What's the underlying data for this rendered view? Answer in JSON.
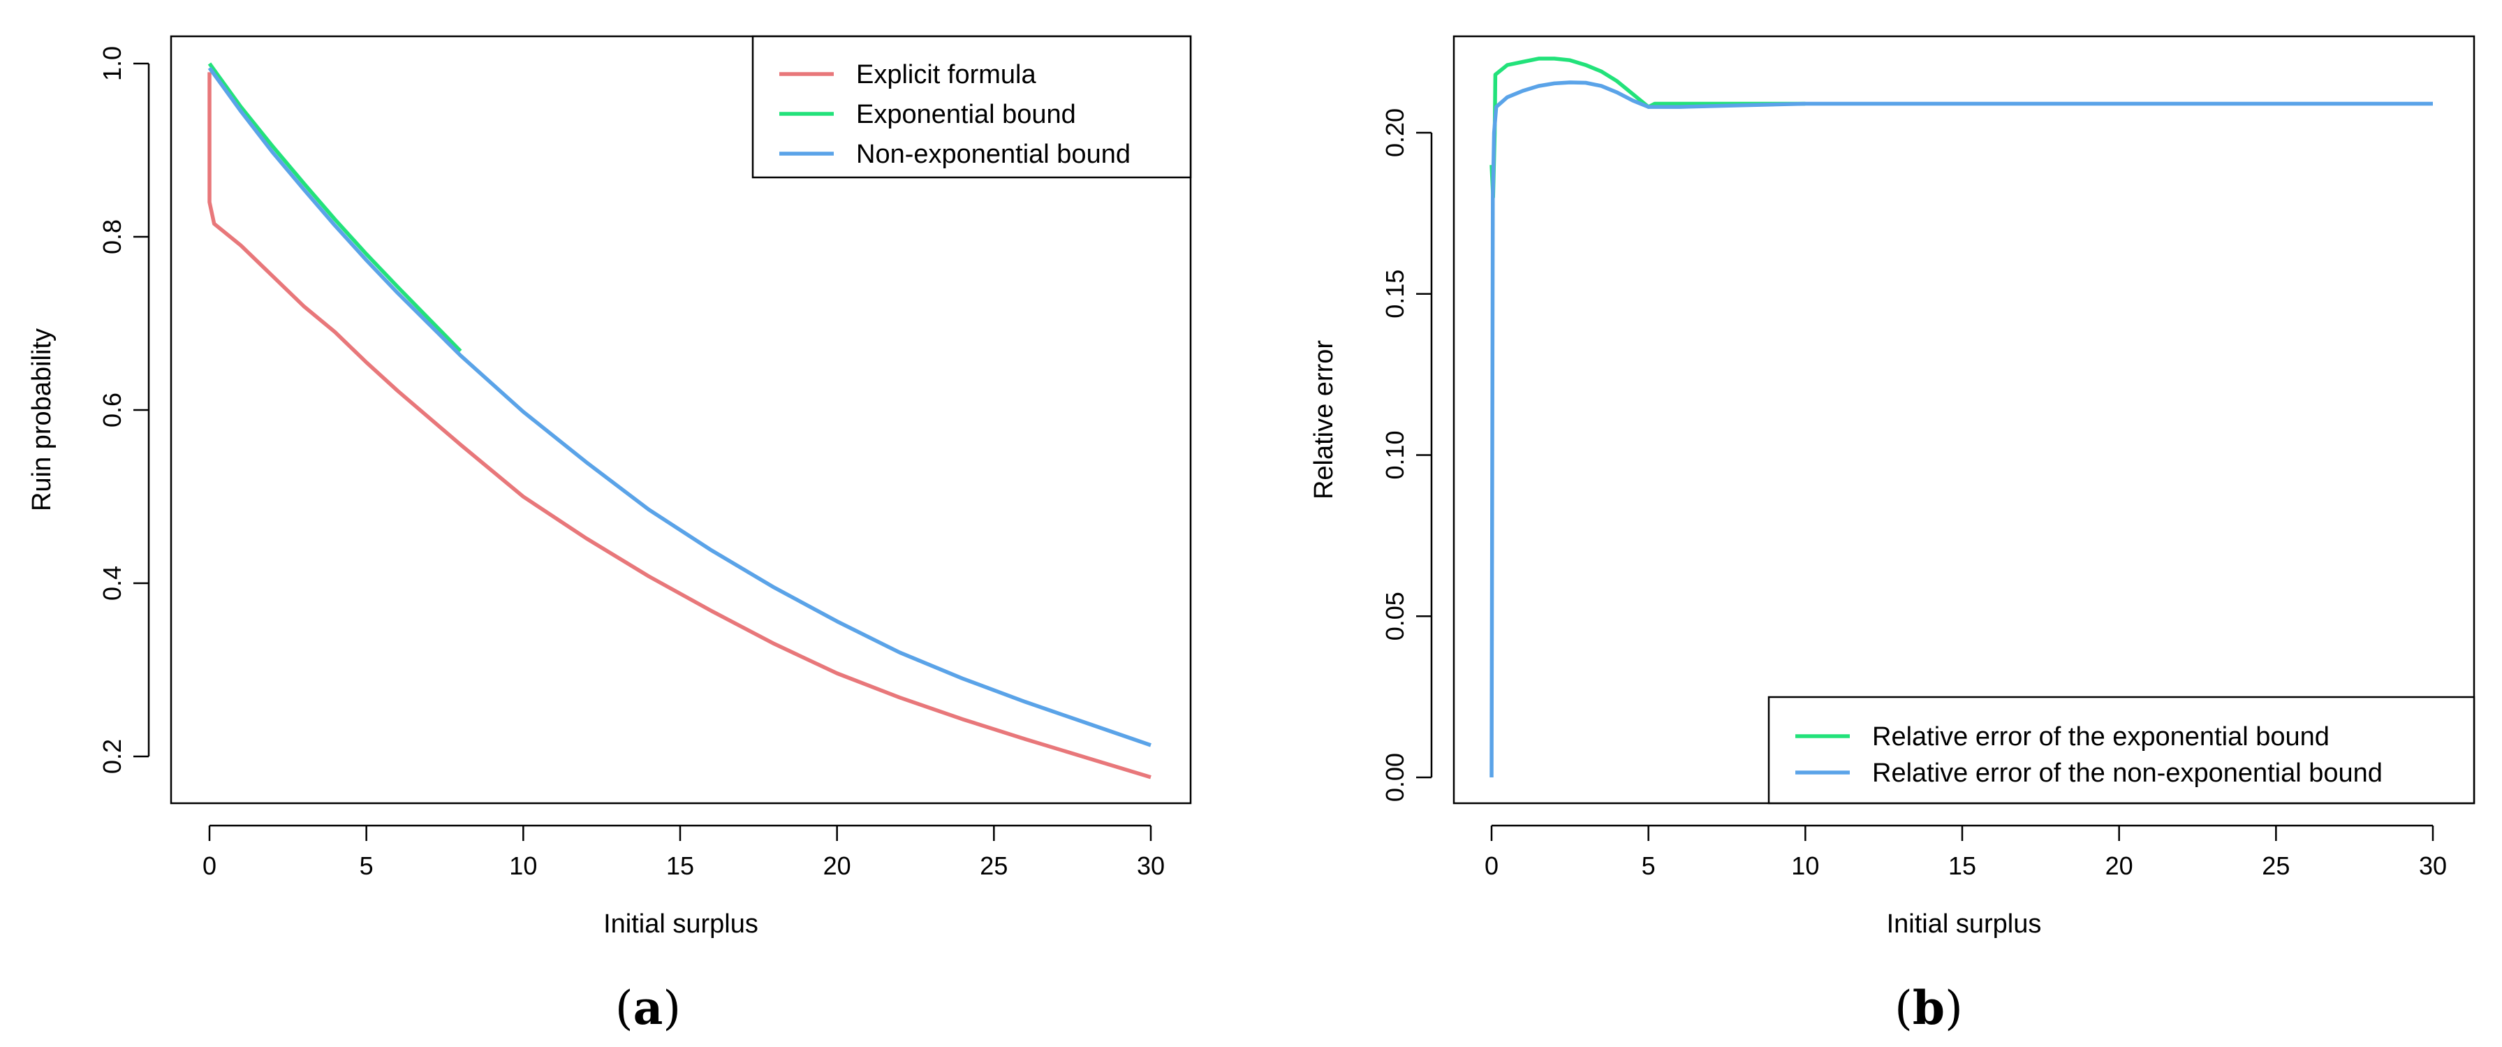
{
  "panels": [
    {
      "caption": "(a)",
      "caption_letter": "a",
      "chart_data": {
        "type": "line",
        "xlabel": "Initial surplus",
        "ylabel": "Ruin probability",
        "xlim": [
          0,
          30
        ],
        "ylim": [
          0.2,
          1.0
        ],
        "xticks": [
          0,
          5,
          10,
          15,
          20,
          25,
          30
        ],
        "yticks": [
          0.2,
          0.4,
          0.6,
          0.8,
          1.0
        ],
        "ytick_labels": [
          "0.2",
          "0.4",
          "0.6",
          "0.8",
          "1.0"
        ],
        "legend_position": "top-right",
        "grid": false,
        "series": [
          {
            "name": "Explicit formula",
            "color": "#e8777a",
            "x": [
              0,
              0,
              0.15,
              1,
              2,
              3,
              4,
              5,
              6,
              8,
              10,
              12,
              14,
              16,
              18,
              20,
              22,
              24,
              26,
              28,
              30
            ],
            "y": [
              0.99,
              0.84,
              0.815,
              0.79,
              0.755,
              0.72,
              0.69,
              0.655,
              0.622,
              0.56,
              0.5,
              0.452,
              0.408,
              0.368,
              0.33,
              0.296,
              0.268,
              0.243,
              0.22,
              0.198,
              0.176
            ]
          },
          {
            "name": "Exponential bound",
            "color": "#22e27a",
            "x": [
              0,
              1,
              2,
              3,
              4,
              5,
              6,
              7,
              8
            ],
            "y": [
              1.0,
              0.95,
              0.905,
              0.862,
              0.82,
              0.78,
              0.742,
              0.705,
              0.668
            ]
          },
          {
            "name": "Non-exponential bound",
            "color": "#5aa3e8",
            "x": [
              0,
              1,
              2,
              3,
              4,
              5,
              6,
              8,
              10,
              12,
              14,
              16,
              18,
              20,
              22,
              24,
              26,
              28,
              30
            ],
            "y": [
              0.995,
              0.945,
              0.898,
              0.855,
              0.813,
              0.773,
              0.735,
              0.663,
              0.598,
              0.54,
              0.485,
              0.438,
              0.395,
              0.356,
              0.32,
              0.29,
              0.263,
              0.238,
              0.213
            ]
          }
        ]
      }
    },
    {
      "caption": "(b)",
      "caption_letter": "b",
      "chart_data": {
        "type": "line",
        "xlabel": "Initial surplus",
        "ylabel": "Relative error",
        "xlim": [
          0,
          30
        ],
        "ylim": [
          0.0,
          0.2
        ],
        "xticks": [
          0,
          5,
          10,
          15,
          20,
          25,
          30
        ],
        "yticks": [
          0.0,
          0.05,
          0.1,
          0.15,
          0.2
        ],
        "ytick_labels": [
          "0.00",
          "0.05",
          "0.10",
          "0.15",
          "0.20"
        ],
        "legend_position": "bottom-right",
        "grid": false,
        "series": [
          {
            "name": "Relative error of the exponential bound",
            "color": "#22e27a",
            "x": [
              0,
              0.05,
              0.1,
              0.12,
              0.5,
              1,
              1.5,
              2,
              2.5,
              3,
              3.5,
              4,
              4.5,
              5,
              5.2,
              6,
              8,
              10
            ],
            "y": [
              0.19,
              0.18,
              0.2,
              0.218,
              0.221,
              0.222,
              0.223,
              0.223,
              0.2225,
              0.221,
              0.219,
              0.216,
              0.212,
              0.208,
              0.209,
              0.209,
              0.209,
              0.209
            ]
          },
          {
            "name": "Relative error of the non-exponential bound",
            "color": "#5aa3e8",
            "x": [
              0,
              0.04,
              0.08,
              0.15,
              0.5,
              1,
              1.5,
              2,
              2.5,
              3,
              3.5,
              4,
              4.5,
              5,
              6,
              8,
              10,
              15,
              20,
              25,
              30
            ],
            "y": [
              0.0,
              0.18,
              0.2,
              0.208,
              0.211,
              0.213,
              0.2145,
              0.2153,
              0.2156,
              0.2155,
              0.2145,
              0.2125,
              0.21,
              0.208,
              0.208,
              0.2085,
              0.209,
              0.209,
              0.209,
              0.209,
              0.209
            ]
          }
        ]
      }
    }
  ]
}
